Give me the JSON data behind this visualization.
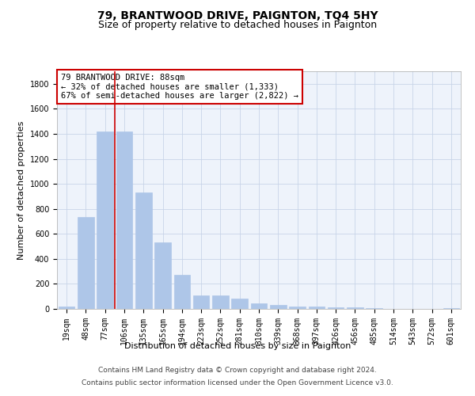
{
  "title": "79, BRANTWOOD DRIVE, PAIGNTON, TQ4 5HY",
  "subtitle": "Size of property relative to detached houses in Paignton",
  "xlabel": "Distribution of detached houses by size in Paignton",
  "ylabel": "Number of detached properties",
  "categories": [
    "19sqm",
    "48sqm",
    "77sqm",
    "106sqm",
    "135sqm",
    "165sqm",
    "194sqm",
    "223sqm",
    "252sqm",
    "281sqm",
    "310sqm",
    "339sqm",
    "368sqm",
    "397sqm",
    "426sqm",
    "456sqm",
    "485sqm",
    "514sqm",
    "543sqm",
    "572sqm",
    "601sqm"
  ],
  "values": [
    18,
    735,
    1420,
    1420,
    930,
    530,
    270,
    105,
    105,
    80,
    45,
    30,
    22,
    17,
    15,
    10,
    6,
    3,
    2,
    1,
    8
  ],
  "bar_color": "#aec6e8",
  "bar_edgecolor": "#aec6e8",
  "vline_color": "#cc0000",
  "vline_index": 2,
  "annotation_text": "79 BRANTWOOD DRIVE: 88sqm\n← 32% of detached houses are smaller (1,333)\n67% of semi-detached houses are larger (2,822) →",
  "annotation_box_edgecolor": "#cc0000",
  "ylim": [
    0,
    1900
  ],
  "yticks": [
    0,
    200,
    400,
    600,
    800,
    1000,
    1200,
    1400,
    1600,
    1800
  ],
  "footer1": "Contains HM Land Registry data © Crown copyright and database right 2024.",
  "footer2": "Contains public sector information licensed under the Open Government Licence v3.0.",
  "bg_color": "#eef3fb",
  "grid_color": "#c8d4e8",
  "title_fontsize": 10,
  "subtitle_fontsize": 9,
  "axis_label_fontsize": 8,
  "tick_fontsize": 7,
  "annotation_fontsize": 7.5,
  "footer_fontsize": 6.5
}
